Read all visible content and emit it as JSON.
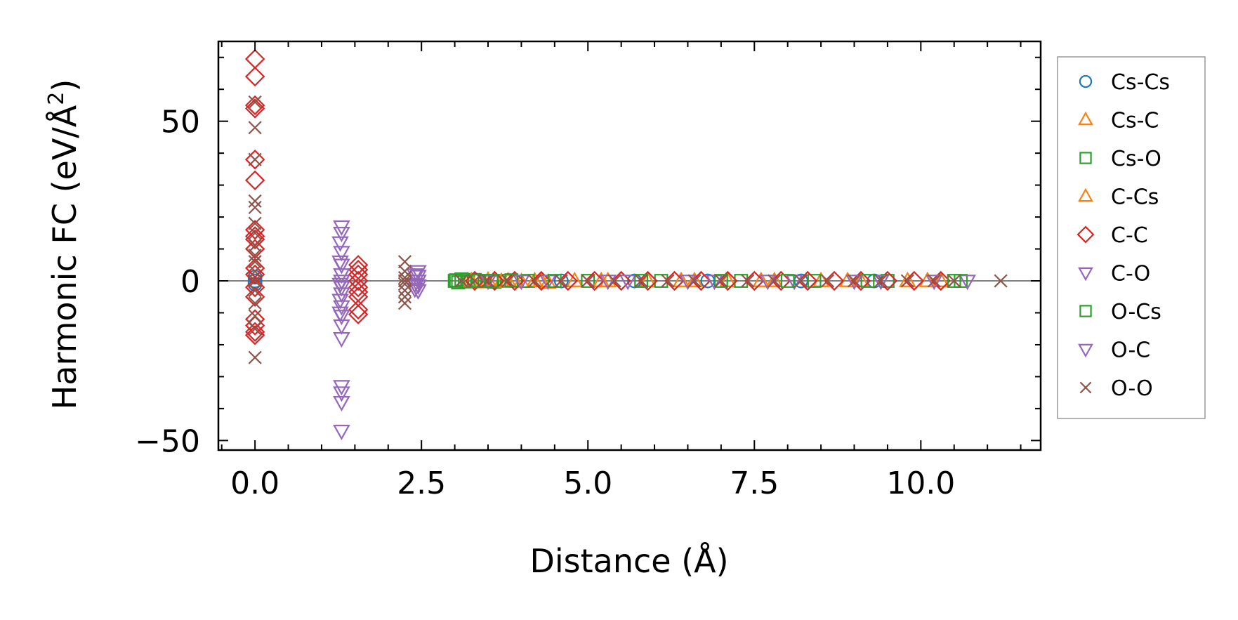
{
  "chart_data": {
    "type": "scatter",
    "title": "",
    "xlabel": "Distance (Å)",
    "ylabel_main": "Harmonic FC (eV/Å",
    "ylabel_sup": "2",
    "ylabel_end": ")",
    "xlim": [
      -0.55,
      11.8
    ],
    "ylim": [
      -53,
      75
    ],
    "xticks": [
      0.0,
      2.5,
      5.0,
      7.5,
      10.0
    ],
    "xtick_labels": [
      "0.0",
      "2.5",
      "5.0",
      "7.5",
      "10.0"
    ],
    "xminor_step": 0.5,
    "yticks": [
      -50,
      0,
      50
    ],
    "ytick_labels": [
      "−50",
      "0",
      "50"
    ],
    "yminor_step": 10,
    "zero_line": 0,
    "legend_position": "outside-right",
    "series": [
      {
        "name": "Cs-Cs",
        "marker": "circle",
        "color": "#1f77b4",
        "points": [
          [
            0.0,
            0.0
          ],
          [
            0.0,
            1.2
          ],
          [
            0.0,
            -1.0
          ],
          [
            4.6,
            0.0
          ],
          [
            5.7,
            0.0
          ],
          [
            6.8,
            0.0
          ],
          [
            8.2,
            0.0
          ],
          [
            9.3,
            0.0
          ]
        ]
      },
      {
        "name": "Cs-C",
        "marker": "triangle-up",
        "color": "#ff7f0e",
        "points": [
          [
            3.2,
            0.0
          ],
          [
            3.4,
            -0.4
          ],
          [
            3.6,
            0.3
          ],
          [
            3.8,
            0.0
          ],
          [
            4.0,
            -0.3
          ],
          [
            4.2,
            0.0
          ],
          [
            4.4,
            -0.5
          ],
          [
            4.8,
            0.0
          ],
          [
            5.3,
            0.0
          ],
          [
            5.9,
            0.0
          ],
          [
            6.6,
            0.0
          ],
          [
            7.1,
            0.0
          ],
          [
            7.8,
            0.0
          ],
          [
            8.5,
            0.0
          ],
          [
            9.1,
            0.0
          ],
          [
            9.8,
            0.0
          ],
          [
            10.3,
            0.0
          ]
        ]
      },
      {
        "name": "Cs-O",
        "marker": "square",
        "color": "#2ca02c",
        "points": [
          [
            3.0,
            0.0
          ],
          [
            3.05,
            -0.5
          ],
          [
            3.1,
            0.5
          ],
          [
            3.2,
            0.0
          ],
          [
            3.3,
            0.3
          ],
          [
            3.45,
            0.0
          ],
          [
            3.6,
            -0.3
          ],
          [
            3.75,
            0.0
          ],
          [
            4.1,
            0.0
          ],
          [
            5.0,
            0.0
          ],
          [
            6.1,
            0.0
          ],
          [
            7.3,
            0.0
          ],
          [
            8.4,
            0.0
          ],
          [
            9.5,
            0.0
          ],
          [
            10.6,
            0.0
          ]
        ]
      },
      {
        "name": "C-Cs",
        "marker": "triangle-up",
        "color": "#ff7f0e",
        "points": [
          [
            3.25,
            0.0
          ],
          [
            3.5,
            0.2
          ],
          [
            3.7,
            -0.2
          ],
          [
            3.9,
            0.0
          ],
          [
            4.3,
            0.0
          ],
          [
            5.2,
            0.0
          ],
          [
            6.4,
            0.0
          ],
          [
            7.6,
            0.0
          ],
          [
            8.9,
            0.0
          ],
          [
            10.1,
            0.0
          ]
        ]
      },
      {
        "name": "C-C",
        "marker": "diamond",
        "color": "#d62728",
        "points": [
          [
            0.0,
            69.5
          ],
          [
            0.0,
            64.0
          ],
          [
            0.0,
            55.0
          ],
          [
            0.0,
            54.0
          ],
          [
            0.0,
            38.0
          ],
          [
            0.0,
            31.5
          ],
          [
            0.0,
            16.0
          ],
          [
            0.0,
            14.0
          ],
          [
            0.0,
            13.0
          ],
          [
            0.0,
            10.0
          ],
          [
            0.0,
            4.0
          ],
          [
            0.0,
            2.0
          ],
          [
            0.0,
            -2.0
          ],
          [
            0.0,
            -5.0
          ],
          [
            0.0,
            -12.0
          ],
          [
            0.0,
            -14.0
          ],
          [
            0.0,
            -16.0
          ],
          [
            0.0,
            -17.0
          ],
          [
            1.55,
            5.0
          ],
          [
            1.55,
            3.5
          ],
          [
            1.55,
            2.0
          ],
          [
            1.55,
            0.0
          ],
          [
            1.55,
            -2.0
          ],
          [
            1.55,
            -3.5
          ],
          [
            1.55,
            -5.0
          ],
          [
            1.55,
            -9.0
          ],
          [
            1.55,
            -10.5
          ],
          [
            3.3,
            0.0
          ],
          [
            3.6,
            0.0
          ],
          [
            3.9,
            0.0
          ],
          [
            4.3,
            0.0
          ],
          [
            4.7,
            0.0
          ],
          [
            5.1,
            0.0
          ],
          [
            5.5,
            0.0
          ],
          [
            5.9,
            0.0
          ],
          [
            6.3,
            0.0
          ],
          [
            6.7,
            0.0
          ],
          [
            7.1,
            0.0
          ],
          [
            7.5,
            0.0
          ],
          [
            7.9,
            0.0
          ],
          [
            8.3,
            0.0
          ],
          [
            8.7,
            0.0
          ],
          [
            9.1,
            0.0
          ],
          [
            9.5,
            0.0
          ],
          [
            9.9,
            0.0
          ],
          [
            10.3,
            0.0
          ]
        ]
      },
      {
        "name": "C-O",
        "marker": "triangle-down",
        "color": "#9467bd",
        "points": [
          [
            1.3,
            17.0
          ],
          [
            1.3,
            15.0
          ],
          [
            1.3,
            9.0
          ],
          [
            1.3,
            5.0
          ],
          [
            1.3,
            2.0
          ],
          [
            1.3,
            0.0
          ],
          [
            1.3,
            -2.0
          ],
          [
            1.3,
            -4.0
          ],
          [
            1.3,
            -8.0
          ],
          [
            1.3,
            -11.0
          ],
          [
            1.3,
            -14.0
          ],
          [
            1.3,
            -18.0
          ],
          [
            1.3,
            -33.0
          ],
          [
            1.3,
            -35.0
          ],
          [
            1.3,
            -38.0
          ],
          [
            1.3,
            -47.0
          ],
          [
            2.45,
            3.0
          ],
          [
            2.45,
            1.5
          ],
          [
            2.45,
            0.0
          ],
          [
            2.45,
            -1.5
          ],
          [
            2.45,
            -3.0
          ],
          [
            3.5,
            0.0
          ],
          [
            4.4,
            0.0
          ],
          [
            5.6,
            0.0
          ],
          [
            6.9,
            0.0
          ],
          [
            8.1,
            0.0
          ],
          [
            9.4,
            0.0
          ],
          [
            10.7,
            0.0
          ]
        ]
      },
      {
        "name": "O-Cs",
        "marker": "square",
        "color": "#2ca02c",
        "points": [
          [
            3.02,
            0.2
          ],
          [
            3.15,
            -0.2
          ],
          [
            3.35,
            0.0
          ],
          [
            3.55,
            0.0
          ],
          [
            3.85,
            0.2
          ],
          [
            4.5,
            0.0
          ],
          [
            5.8,
            0.0
          ],
          [
            7.0,
            0.0
          ],
          [
            8.0,
            0.0
          ],
          [
            9.2,
            0.0
          ],
          [
            10.5,
            0.0
          ]
        ]
      },
      {
        "name": "O-C",
        "marker": "triangle-down",
        "color": "#9467bd",
        "points": [
          [
            1.28,
            12.0
          ],
          [
            1.28,
            6.0
          ],
          [
            1.28,
            -1.0
          ],
          [
            1.28,
            -6.0
          ],
          [
            1.28,
            -10.0
          ],
          [
            2.4,
            2.0
          ],
          [
            2.4,
            -1.0
          ],
          [
            2.4,
            -2.5
          ],
          [
            4.0,
            0.0
          ],
          [
            5.3,
            0.0
          ],
          [
            6.5,
            0.0
          ],
          [
            7.7,
            0.0
          ],
          [
            9.0,
            0.0
          ],
          [
            10.2,
            0.0
          ]
        ]
      },
      {
        "name": "O-O",
        "marker": "x",
        "color": "#8c564b",
        "points": [
          [
            0.0,
            56.0
          ],
          [
            0.0,
            48.0
          ],
          [
            0.0,
            38.0
          ],
          [
            0.0,
            25.0
          ],
          [
            0.0,
            23.0
          ],
          [
            0.0,
            18.0
          ],
          [
            0.0,
            15.0
          ],
          [
            0.0,
            11.0
          ],
          [
            0.0,
            8.0
          ],
          [
            0.0,
            6.0
          ],
          [
            0.0,
            3.0
          ],
          [
            0.0,
            0.0
          ],
          [
            0.0,
            -3.0
          ],
          [
            0.0,
            -7.0
          ],
          [
            0.0,
            -11.0
          ],
          [
            0.0,
            -15.0
          ],
          [
            0.0,
            -24.0
          ],
          [
            2.25,
            6.0
          ],
          [
            2.25,
            3.0
          ],
          [
            2.25,
            1.0
          ],
          [
            2.25,
            0.0
          ],
          [
            2.25,
            -1.0
          ],
          [
            2.25,
            -3.0
          ],
          [
            2.25,
            -5.0
          ],
          [
            2.25,
            -7.0
          ],
          [
            3.1,
            0.0
          ],
          [
            3.3,
            0.0
          ],
          [
            3.5,
            0.0
          ],
          [
            3.8,
            0.0
          ],
          [
            4.2,
            0.0
          ],
          [
            4.6,
            0.0
          ],
          [
            5.0,
            0.0
          ],
          [
            5.4,
            0.0
          ],
          [
            5.8,
            0.0
          ],
          [
            6.2,
            0.0
          ],
          [
            6.6,
            0.0
          ],
          [
            7.0,
            0.0
          ],
          [
            7.4,
            0.0
          ],
          [
            7.8,
            0.0
          ],
          [
            8.2,
            0.0
          ],
          [
            8.6,
            0.0
          ],
          [
            9.0,
            0.0
          ],
          [
            9.4,
            0.0
          ],
          [
            9.8,
            0.0
          ],
          [
            10.2,
            0.0
          ],
          [
            10.5,
            0.0
          ],
          [
            11.2,
            0.0
          ]
        ]
      }
    ]
  }
}
